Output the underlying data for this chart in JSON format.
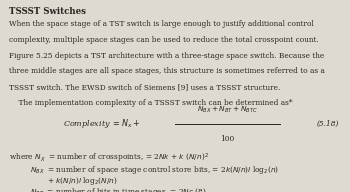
{
  "title": "TSSST Switches",
  "para1": "When the space stage of a TST switch is large enough to justify additional control",
  "para2": "complexity, multiple space stages can be used to reduce the total crosspoint count.",
  "para3": "Figure 5.25 depicts a TST architecture with a three-stage space switch. Because the",
  "para4": "three middle stages are all space stages, this structure is sometimes referred to as a",
  "para5": "TSSST switch. The EWSD switch of Siemens [9] uses a TSSST structure.",
  "para6": "    The implementation complexity of a TSSST switch can be determined as*",
  "eq_label": "(5.18)",
  "bg_color": "#dedad2",
  "text_color": "#2a2520",
  "font_size": 5.3,
  "title_font_size": 6.2,
  "eq_font_size": 5.8
}
